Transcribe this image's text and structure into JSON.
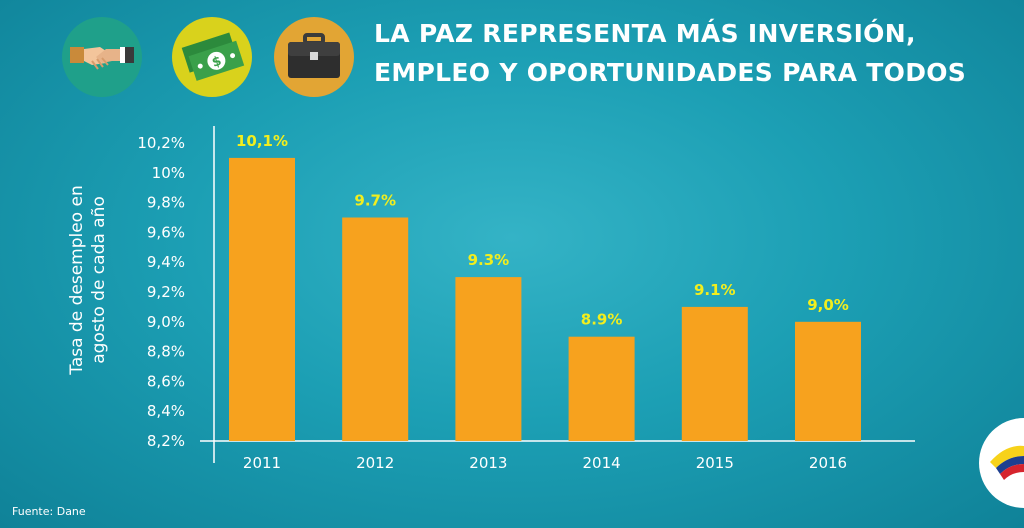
{
  "header": {
    "title_line1": "LA PAZ REPRESENTA MÁS INVERSIÓN,",
    "title_line2": "EMPLEO Y OPORTUNIDADES PARA TODOS",
    "icons": [
      "handshake-icon",
      "money-icon",
      "briefcase-icon"
    ]
  },
  "colors": {
    "bar": "#f7a21e",
    "data_label": "#f2ee1e",
    "background": "#1c9fb4"
  },
  "chart_data": {
    "type": "bar",
    "title": "LA PAZ REPRESENTA MÁS INVERSIÓN, EMPLEO Y OPORTUNIDADES PARA TODOS",
    "ylabel_line1": "Tasa de desempleo en",
    "ylabel_line2": "agosto de cada año",
    "xlabel": "",
    "categories": [
      "2011",
      "2012",
      "2013",
      "2014",
      "2015",
      "2016"
    ],
    "values": [
      10.1,
      9.7,
      9.3,
      8.9,
      9.1,
      9.0
    ],
    "data_labels": [
      "10,1%",
      "9.7%",
      "9.3%",
      "8.9%",
      "9.1%",
      "9,0%"
    ],
    "ylim": [
      8.2,
      10.2
    ],
    "yticks": [
      8.2,
      8.4,
      8.6,
      8.8,
      9.0,
      9.2,
      9.4,
      9.6,
      9.8,
      10.0,
      10.2
    ],
    "ytick_labels": [
      "8,2%",
      "8,4%",
      "8,6%",
      "8,8%",
      "9,0%",
      "9,2%",
      "9,4%",
      "9,6%",
      "9,8%",
      "10%",
      "10,2%"
    ],
    "grid": false
  },
  "footer": {
    "source": "Fuente: Dane"
  }
}
